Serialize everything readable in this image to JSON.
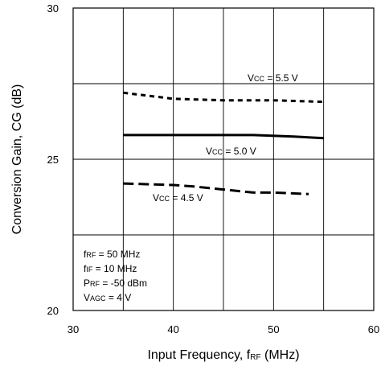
{
  "chart_data": {
    "type": "line",
    "xlabel": "Input Frequency, f",
    "xlabel_sub": "RF",
    "xlabel_unit": "(MHz)",
    "ylabel": "Conversion Gain, CG (dB)",
    "xlim": [
      30,
      60
    ],
    "ylim": [
      20,
      30
    ],
    "x_ticks": [
      30,
      40,
      50,
      60
    ],
    "y_ticks": [
      20,
      25,
      30
    ],
    "grid": true,
    "series": [
      {
        "name": "VCC = 5.5 V",
        "label_prefix": "V",
        "label_sub": "CC",
        "label_suffix": " = 5.5 V",
        "style": "dotted",
        "x": [
          35,
          40,
          45,
          50,
          55
        ],
        "y": [
          27.2,
          27.0,
          26.95,
          26.95,
          26.9
        ]
      },
      {
        "name": "VCC = 5.0 V",
        "label_prefix": "V",
        "label_sub": "CC",
        "label_suffix": " = 5.0 V",
        "style": "solid",
        "x": [
          35,
          40,
          45,
          48,
          52,
          55
        ],
        "y": [
          25.8,
          25.8,
          25.8,
          25.8,
          25.75,
          25.7
        ]
      },
      {
        "name": "VCC = 4.5 V",
        "label_prefix": "V",
        "label_sub": "CC",
        "label_suffix": " = 4.5 V",
        "style": "dashed",
        "x": [
          35,
          40,
          42,
          45,
          48,
          50,
          53.5
        ],
        "y": [
          24.2,
          24.15,
          24.1,
          24.0,
          23.9,
          23.9,
          23.85
        ]
      }
    ],
    "conditions": [
      {
        "prefix": "f",
        "sub": "RF",
        "suffix": " = 50 MHz"
      },
      {
        "prefix": "f",
        "sub": "IF",
        "suffix": " = 10 MHz"
      },
      {
        "prefix": "P",
        "sub": "RF",
        "suffix": " = -50 dBm"
      },
      {
        "prefix": "V",
        "sub": "AGC",
        "suffix": " = 4 V"
      }
    ]
  }
}
